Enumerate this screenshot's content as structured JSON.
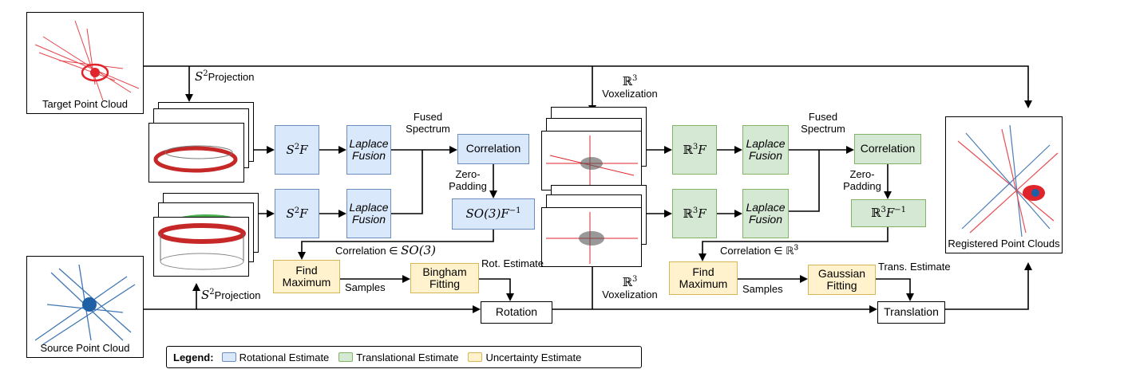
{
  "clouds": {
    "target": "Target Point Cloud",
    "source": "Source Point Cloud",
    "registered": "Registered Point Clouds"
  },
  "labels": {
    "s2_proj_prefix": "S",
    "s2_proj_exp": "2",
    "projection": "Projection",
    "r3_symbol": "ℝ",
    "r3_exp": "3",
    "voxelization": "Voxelization",
    "fused": "Fused",
    "spectrum": "Spectrum",
    "zero": "Zero-",
    "padding": "Padding",
    "corr_so3": "Correlation ∈ ",
    "corr_so3_math": "SO(3)",
    "corr_r3": "Correlation ∈ ℝ",
    "samples": "Samples",
    "rot_estimate": "Rot. Estimate",
    "trans_estimate": "Trans. Estimate"
  },
  "boxes": {
    "s2f": "F",
    "r3f": "F",
    "laplace": "Laplace",
    "fusion": "Fusion",
    "correlation": "Correlation",
    "so3_inv": "SO(3)F",
    "inv_exp": "−1",
    "find": "Find",
    "maximum": "Maximum",
    "bingham": "Bingham",
    "gaussian": "Gaussian",
    "fitting": "Fitting",
    "rotation": "Rotation",
    "translation": "Translation"
  },
  "legend": {
    "title": "Legend:",
    "rot": "Rotational Estimate",
    "trans": "Translational Estimate",
    "unc": "Uncertainty Estimate"
  },
  "colors": {
    "blue_fill": "#dae8fc",
    "blue_stroke": "#6c8ebf",
    "green_fill": "#d5e8d4",
    "green_stroke": "#82b366",
    "yellow_fill": "#fff2cc",
    "yellow_stroke": "#d6b656",
    "target_points": "#e0242b",
    "source_points": "#1f5fa6"
  }
}
